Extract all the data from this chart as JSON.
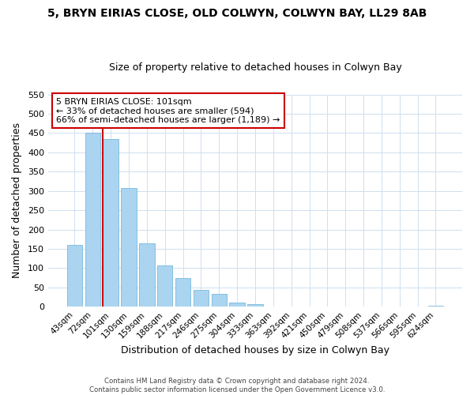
{
  "title": "5, BRYN EIRIAS CLOSE, OLD COLWYN, COLWYN BAY, LL29 8AB",
  "subtitle": "Size of property relative to detached houses in Colwyn Bay",
  "xlabel": "Distribution of detached houses by size in Colwyn Bay",
  "ylabel": "Number of detached properties",
  "bar_labels": [
    "43sqm",
    "72sqm",
    "101sqm",
    "130sqm",
    "159sqm",
    "188sqm",
    "217sqm",
    "246sqm",
    "275sqm",
    "304sqm",
    "333sqm",
    "363sqm",
    "392sqm",
    "421sqm",
    "450sqm",
    "479sqm",
    "508sqm",
    "537sqm",
    "566sqm",
    "595sqm",
    "624sqm"
  ],
  "bar_values": [
    160,
    450,
    435,
    308,
    165,
    108,
    75,
    43,
    33,
    10,
    7,
    1,
    0,
    0,
    0,
    0,
    0,
    0,
    0,
    0,
    3
  ],
  "bar_color": "#aad4f0",
  "bar_edge_color": "#7ab8dc",
  "highlight_bar_index": 2,
  "highlight_line_color": "#cc0000",
  "ylim": [
    0,
    550
  ],
  "yticks": [
    0,
    50,
    100,
    150,
    200,
    250,
    300,
    350,
    400,
    450,
    500,
    550
  ],
  "annotation_title": "5 BRYN EIRIAS CLOSE: 101sqm",
  "annotation_line1": "← 33% of detached houses are smaller (594)",
  "annotation_line2": "66% of semi-detached houses are larger (1,189) →",
  "footer_line1": "Contains HM Land Registry data © Crown copyright and database right 2024.",
  "footer_line2": "Contains public sector information licensed under the Open Government Licence v3.0.",
  "background_color": "#ffffff",
  "grid_color": "#cfe0ef"
}
